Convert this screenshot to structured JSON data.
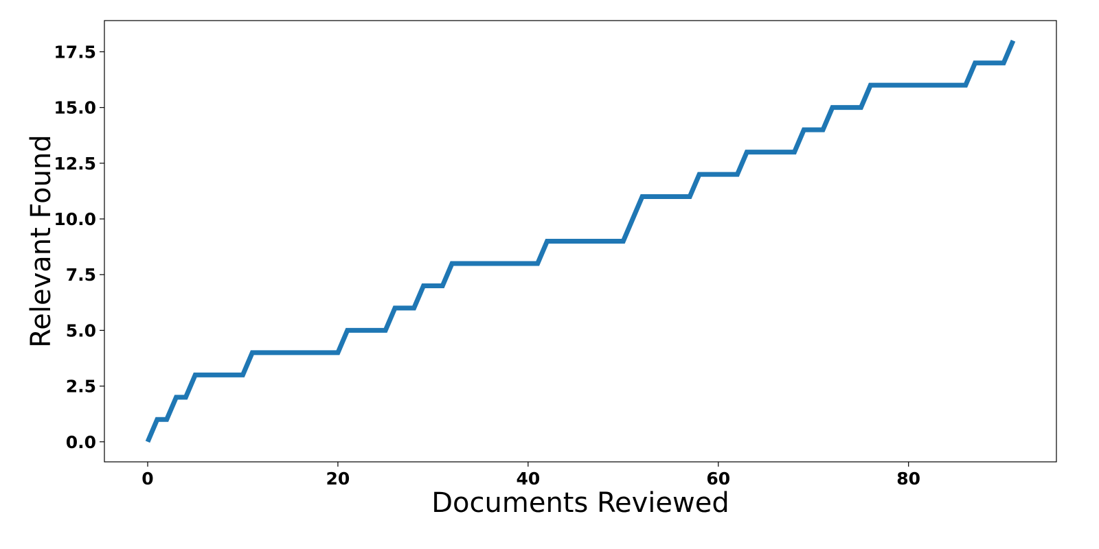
{
  "chart_data": {
    "type": "line",
    "xlabel": "Documents Reviewed",
    "ylabel": "Relevant Found",
    "xlim": [
      -4.55,
      95.55
    ],
    "ylim": [
      -0.9,
      18.9
    ],
    "x_ticks": [
      0,
      20,
      40,
      60,
      80
    ],
    "y_ticks": [
      0.0,
      2.5,
      5.0,
      7.5,
      10.0,
      12.5,
      15.0,
      17.5
    ],
    "x_tick_labels": [
      "0",
      "20",
      "40",
      "60",
      "80"
    ],
    "y_tick_labels": [
      "0.0",
      "2.5",
      "5.0",
      "7.5",
      "10.0",
      "12.5",
      "15.0",
      "17.5"
    ],
    "grid": false,
    "series": [
      {
        "color": "#1f77b4",
        "x": [
          0,
          1,
          2,
          3,
          4,
          5,
          6,
          7,
          8,
          9,
          10,
          11,
          12,
          13,
          14,
          15,
          16,
          17,
          18,
          19,
          20,
          21,
          22,
          23,
          24,
          25,
          26,
          27,
          28,
          29,
          30,
          31,
          32,
          33,
          34,
          35,
          36,
          37,
          38,
          39,
          40,
          41,
          42,
          43,
          44,
          45,
          46,
          47,
          48,
          49,
          50,
          51,
          52,
          53,
          54,
          55,
          56,
          57,
          58,
          59,
          60,
          61,
          62,
          63,
          64,
          65,
          66,
          67,
          68,
          69,
          70,
          71,
          72,
          73,
          74,
          75,
          76,
          77,
          78,
          79,
          80,
          81,
          82,
          83,
          84,
          85,
          86,
          87,
          88,
          89,
          90,
          91
        ],
        "y": [
          0,
          1,
          1,
          2,
          2,
          3,
          3,
          3,
          3,
          3,
          3,
          4,
          4,
          4,
          4,
          4,
          4,
          4,
          4,
          4,
          4,
          5,
          5,
          5,
          5,
          5,
          6,
          6,
          6,
          7,
          7,
          7,
          8,
          8,
          8,
          8,
          8,
          8,
          8,
          8,
          8,
          8,
          9,
          9,
          9,
          9,
          9,
          9,
          9,
          9,
          9,
          10,
          11,
          11,
          11,
          11,
          11,
          11,
          12,
          12,
          12,
          12,
          12,
          13,
          13,
          13,
          13,
          13,
          13,
          14,
          14,
          14,
          15,
          15,
          15,
          15,
          16,
          16,
          16,
          16,
          16,
          16,
          16,
          16,
          16,
          16,
          16,
          17,
          17,
          17,
          17,
          18
        ]
      }
    ]
  }
}
